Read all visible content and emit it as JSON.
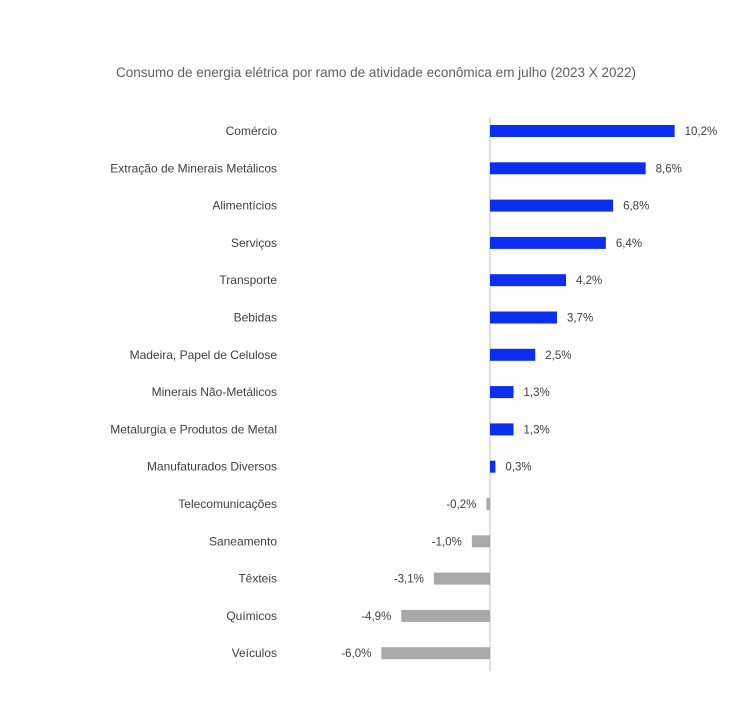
{
  "chart_data": {
    "type": "bar",
    "orientation": "horizontal",
    "title": "Consumo de energia elétrica por ramo de atividade econômica em julho (2023 X 2022)",
    "xlabel": "",
    "ylabel": "",
    "grid": false,
    "legend": "none",
    "xlim": [
      -6.0,
      10.2
    ],
    "categories": [
      "Comércio",
      "Extração de Minerais Metálicos",
      "Alimentícios",
      "Serviços",
      "Transporte",
      "Bebidas",
      "Madeira, Papel de Celulose",
      "Minerais Não-Metálicos",
      "Metalurgia e Produtos de Metal",
      "Manufaturados Diversos",
      "Telecomunicações",
      "Saneamento",
      "Têxteis",
      "Químicos",
      "Veículos"
    ],
    "values": [
      10.2,
      8.6,
      6.8,
      6.4,
      4.2,
      3.7,
      2.5,
      1.3,
      1.3,
      0.3,
      -0.2,
      -1.0,
      -3.1,
      -4.9,
      -6.0
    ],
    "value_labels": [
      "10,2%",
      "8,6%",
      "6,8%",
      "6,4%",
      "4,2%",
      "3,7%",
      "2,5%",
      "1,3%",
      "1,3%",
      "0,3%",
      "-0,2%",
      "-1,0%",
      "-3,1%",
      "-4,9%",
      "-6,0%"
    ],
    "colors": {
      "positive": "#0a2ff0",
      "negative": "#a9a7a8",
      "axis": "#bfbfbf"
    }
  }
}
